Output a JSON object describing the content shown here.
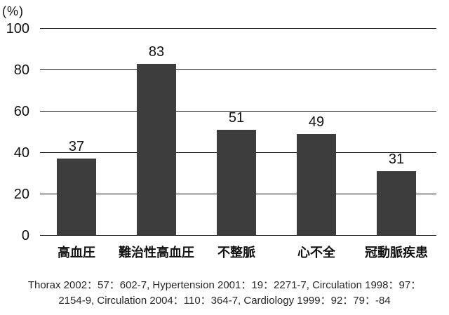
{
  "chart_data": {
    "type": "bar",
    "title": "",
    "unit_label": "(%)",
    "categories": [
      "高血圧",
      "難治性高血圧",
      "不整脈",
      "心不全",
      "冠動脈疾患"
    ],
    "values": [
      37,
      83,
      51,
      49,
      31
    ],
    "value_labels": [
      "37",
      "83",
      "51",
      "49",
      "31"
    ],
    "ylim": [
      0,
      100
    ],
    "yticks": [
      0,
      20,
      40,
      60,
      80,
      100
    ],
    "grid": "horizontal-only",
    "legend": "none",
    "bar_color": "#3d3d3d"
  },
  "colors": {
    "background": "#ffffff",
    "bar": "#3d3d3d",
    "gridline": "#111111",
    "text": "#111111",
    "footer_text": "#262626"
  },
  "footer": {
    "lines": [
      "Thorax 2002：57：602-7, Hypertension 2001：19：2271-7, Circulation 1998：97：",
      "2154-9, Circulation 2004：110：364-7, Cardiology 1999：92：79：-84"
    ]
  }
}
